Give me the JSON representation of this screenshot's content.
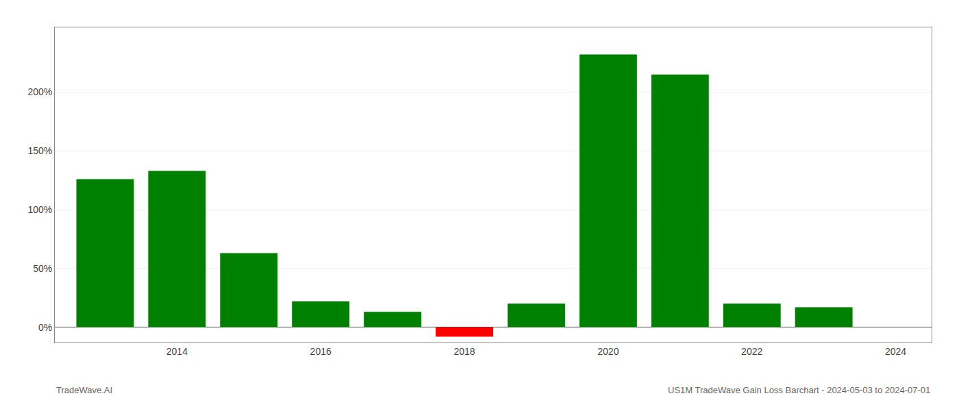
{
  "chart_data": {
    "type": "bar",
    "title": "US1M TradeWave Gain Loss Barchart - 2024-05-03 to 2024-07-01",
    "annotations": [
      "TradeWave.AI"
    ],
    "x": [
      2013,
      2014,
      2015,
      2016,
      2017,
      2018,
      2019,
      2020,
      2021,
      2022,
      2023
    ],
    "values": [
      1.26,
      1.33,
      0.63,
      0.22,
      0.13,
      -0.08,
      0.2,
      2.32,
      2.15,
      0.2,
      0.17
    ],
    "colors": [
      "#008000",
      "#008000",
      "#008000",
      "#008000",
      "#008000",
      "#ff0000",
      "#008000",
      "#008000",
      "#008000",
      "#008000",
      "#008000"
    ],
    "xlim": [
      2012.3,
      2024.5
    ],
    "xticks": [
      2014,
      2016,
      2018,
      2020,
      2022,
      2024
    ],
    "ylim": [
      -0.13,
      2.55
    ],
    "yticks": [
      {
        "value": 0.0,
        "label": "0%"
      },
      {
        "value": 0.5,
        "label": "50%"
      },
      {
        "value": 1.0,
        "label": "100%"
      },
      {
        "value": 1.5,
        "label": "150%"
      },
      {
        "value": 2.0,
        "label": "200%"
      }
    ],
    "grid": true
  }
}
